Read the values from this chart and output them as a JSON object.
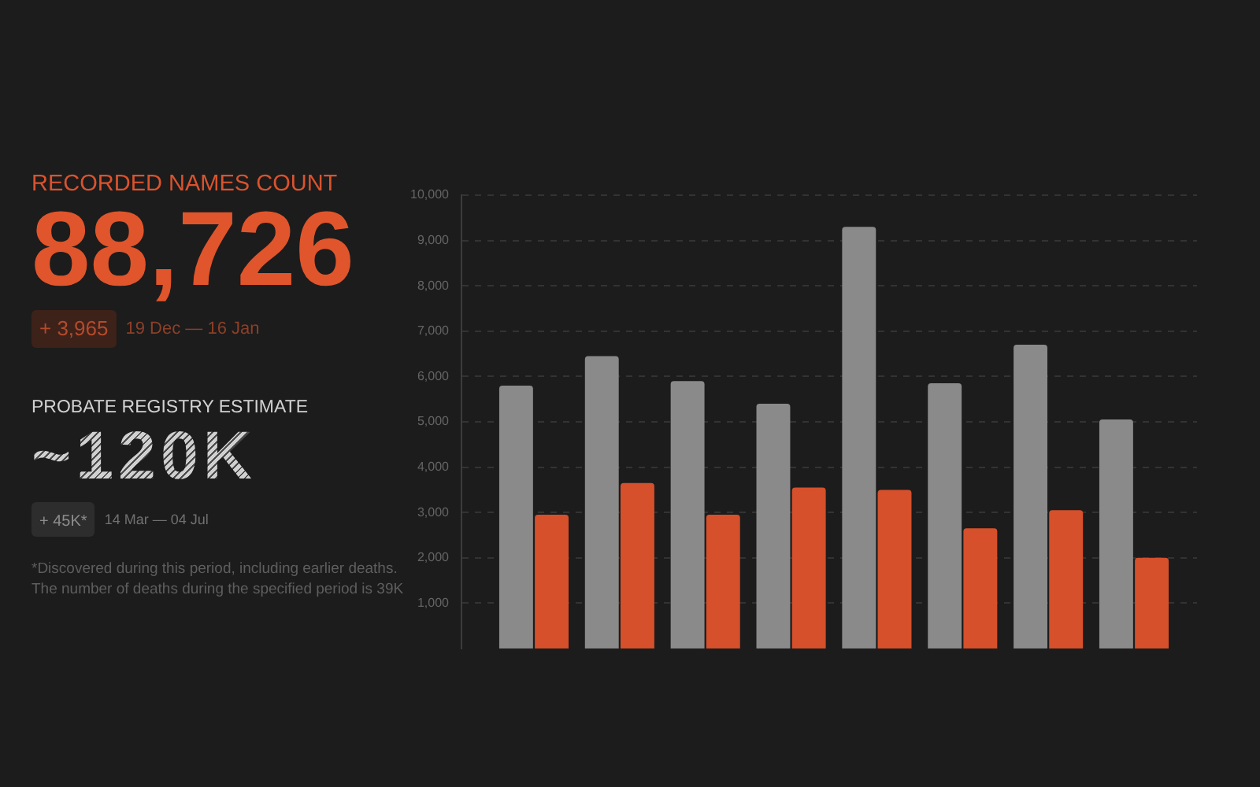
{
  "chart_data": [
    {
      "type": "other",
      "title": "RECORDED NAMES COUNT",
      "annotations": [
        "88,726",
        "+ 3,965",
        "19 Dec — 16 Jan"
      ]
    },
    {
      "type": "other",
      "title": "PROBATE REGISTRY ESTIMATE",
      "annotations": [
        "~120K",
        "+ 45K*",
        "14 Mar — 04 Jul",
        "*Discovered during this period, including earlier deaths. The number of deaths during the specified period is 39K"
      ]
    },
    {
      "type": "bar",
      "categories": [
        null,
        null,
        null,
        null,
        null,
        null,
        null,
        null
      ],
      "series": [
        {
          "color": "#8a8a8a",
          "values": [
            5800,
            6450,
            5900,
            5400,
            9300,
            5850,
            6700,
            5050
          ]
        },
        {
          "color": "#d5502b",
          "values": [
            2950,
            3650,
            2950,
            3550,
            3500,
            2650,
            3050,
            2000
          ]
        }
      ],
      "ylim": [
        0,
        10000
      ],
      "yticks": [
        {
          "value": 1000,
          "label": "1,000"
        },
        {
          "value": 2000,
          "label": "2,000"
        },
        {
          "value": 3000,
          "label": "3,000"
        },
        {
          "value": 4000,
          "label": "4,000"
        },
        {
          "value": 5000,
          "label": "5,000"
        },
        {
          "value": 6000,
          "label": "6,000"
        },
        {
          "value": 7000,
          "label": "7,000"
        },
        {
          "value": 8000,
          "label": "8,000"
        },
        {
          "value": 9000,
          "label": "9,000"
        },
        {
          "value": 10000,
          "label": "10,000"
        }
      ],
      "grid": "y",
      "legend": false
    }
  ]
}
